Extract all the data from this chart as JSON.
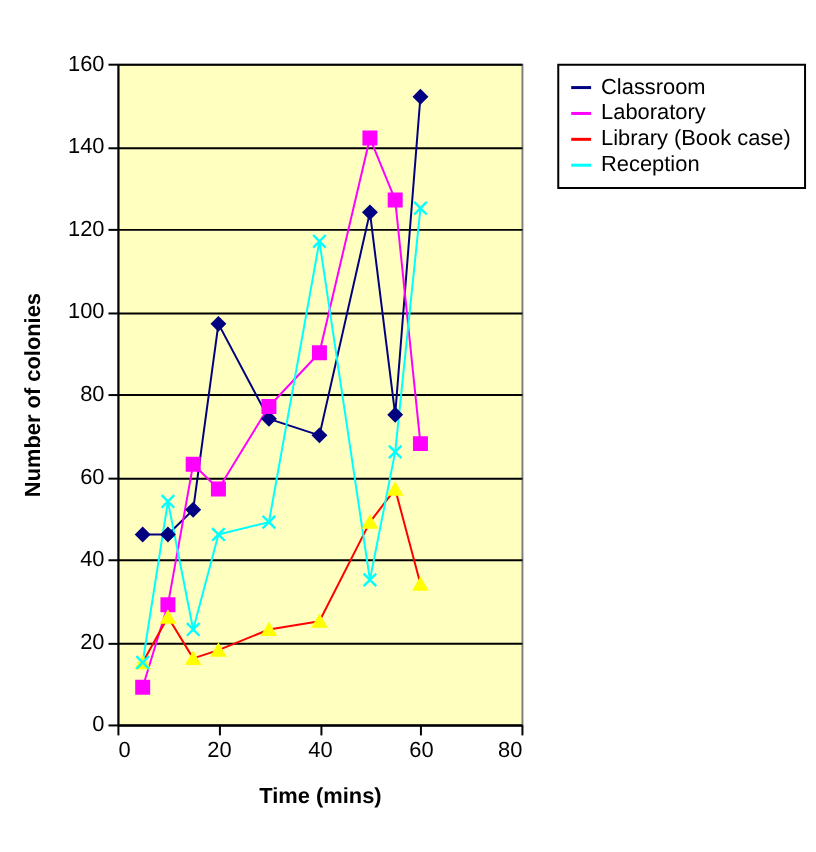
{
  "chart_data": {
    "type": "line",
    "xlabel": "Time (mins)",
    "ylabel": "Number of colonies",
    "x": [
      5,
      10,
      15,
      20,
      30,
      40,
      50,
      55,
      60
    ],
    "series": [
      {
        "name": "Classroom",
        "color": "#000080",
        "marker": "diamond",
        "values": [
          46,
          46,
          52,
          97,
          74,
          70,
          124,
          75,
          152
        ]
      },
      {
        "name": "Laboratory",
        "color": "#ff00ff",
        "marker": "square",
        "values": [
          9,
          29,
          63,
          57,
          77,
          90,
          142,
          127,
          68
        ]
      },
      {
        "name": "Library (Book case)",
        "color": "#ff0000",
        "colors": [
          "#ffff00",
          "#ffff00",
          "#ffff00",
          "#ffff00",
          "#ffff00",
          "#ffff00",
          "#ffff00",
          "#ffff00",
          "#ffff00"
        ],
        "marker": "triangle",
        "values": [
          15,
          26,
          16,
          18,
          23,
          25,
          49,
          57,
          34
        ]
      },
      {
        "name": "Reception",
        "color": "#00ffff",
        "marker": "cross",
        "values": [
          15,
          54,
          23,
          46,
          49,
          117,
          35,
          66,
          125
        ]
      }
    ],
    "xlim": [
      0,
      80
    ],
    "xticks": [
      0,
      20,
      40,
      60,
      80
    ],
    "ylim": [
      0,
      160
    ],
    "yticks": [
      0,
      20,
      40,
      60,
      80,
      100,
      120,
      140,
      160
    ],
    "grid": "y",
    "legend": "right",
    "line_style": "solid"
  }
}
